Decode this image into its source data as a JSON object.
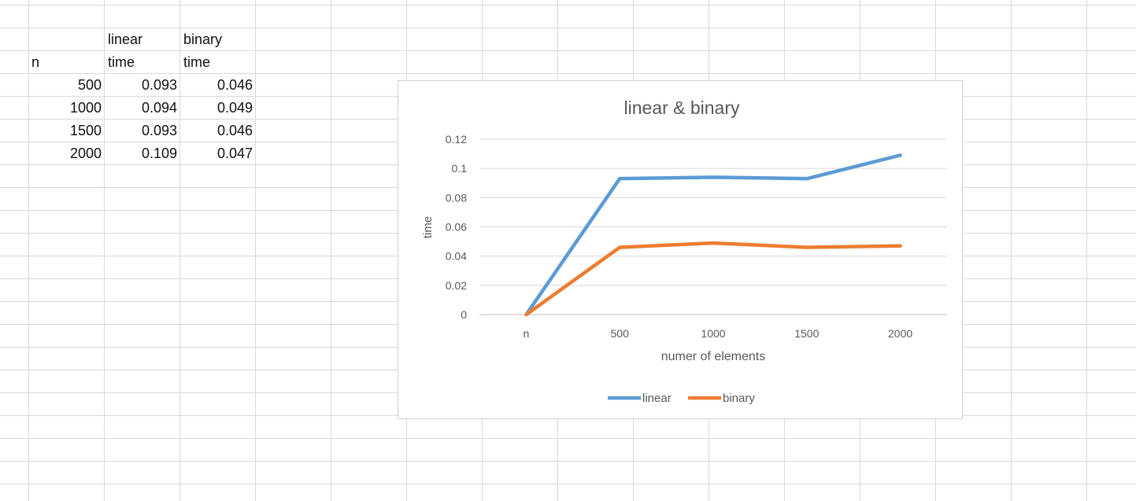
{
  "spreadsheet": {
    "header_row_1": {
      "b": "linear",
      "c": "binary"
    },
    "header_row_2": {
      "a": "n",
      "b": "time",
      "c": "time"
    },
    "rows": [
      {
        "n": "500",
        "linear": "0.093",
        "binary": "0.046"
      },
      {
        "n": "1000",
        "linear": "0.094",
        "binary": "0.049"
      },
      {
        "n": "1500",
        "linear": "0.093",
        "binary": "0.046"
      },
      {
        "n": "2000",
        "linear": "0.109",
        "binary": "0.047"
      }
    ]
  },
  "chart_data": {
    "type": "line",
    "title": "linear & binary",
    "xlabel": "numer of elements",
    "ylabel": "time",
    "categories": [
      "n",
      "500",
      "1000",
      "1500",
      "2000"
    ],
    "ylim": [
      0,
      0.12
    ],
    "yticks": [
      "0",
      "0.02",
      "0.04",
      "0.06",
      "0.08",
      "0.1",
      "0.12"
    ],
    "grid": true,
    "legend": "bottom",
    "series": [
      {
        "name": "linear",
        "color": "#5B9BD5",
        "values": [
          0,
          0.093,
          0.094,
          0.093,
          0.109
        ]
      },
      {
        "name": "binary",
        "color": "#ED7D31",
        "values": [
          0,
          0.046,
          0.049,
          0.046,
          0.047
        ]
      }
    ]
  }
}
